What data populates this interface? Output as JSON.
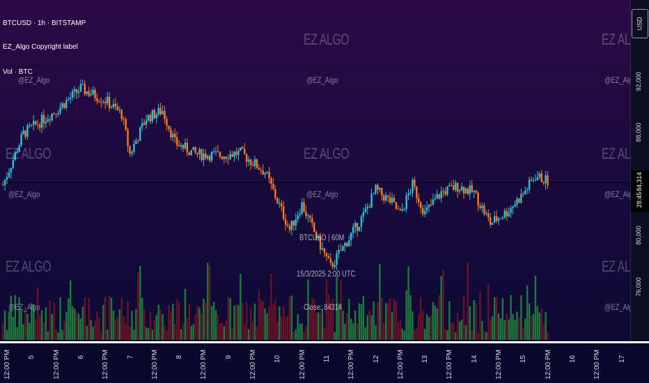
{
  "header": {
    "symbol_line": "BTCUSD · 1h · BITSTAMP",
    "indicator_line": "EZ_Algo Copyright label",
    "volume_line": "Vol · BTC"
  },
  "watermarks": {
    "big": "EZ ALGO",
    "small": "@EZ_Algo"
  },
  "tooltip": {
    "title": "BTCUSD | 60M",
    "datetime": "15/3/2025 2:00 UTC",
    "close": "Close: 84314"
  },
  "price_axis": {
    "currency_button": "USD",
    "ticks": [
      "92,000",
      "88,000",
      "80,000",
      "76,000"
    ],
    "last_price": "84,314",
    "countdown": "28:45"
  },
  "time_axis": {
    "labels": [
      "12:00 PM",
      "5",
      "12:00 PM",
      "6",
      "12:00 PM",
      "7",
      "12:00 PM",
      "8",
      "12:00 PM",
      "9",
      "12:00 PM",
      "10",
      "12:00 PM",
      "11",
      "12:00 PM",
      "12",
      "12:00 PM",
      "13",
      "12:00 PM",
      "14",
      "12:00 PM",
      "15",
      "12:00 PM",
      "16",
      "12:00 PM",
      "17"
    ]
  },
  "colors": {
    "up": "#26c6da",
    "down": "#ff7a1a",
    "vol_up": "#1e7a3a",
    "vol_down": "#6a1226",
    "last_price_line": "#000000"
  },
  "chart_data": {
    "type": "candlestick",
    "symbol": "BTCUSD",
    "interval": "1h",
    "exchange": "BITSTAMP",
    "y_ticks": [
      92000,
      88000,
      80000,
      76000
    ],
    "last_close": 84314,
    "x_day_ticks": [
      "5",
      "6",
      "7",
      "8",
      "9",
      "10",
      "11",
      "12",
      "13",
      "14",
      "15",
      "16",
      "17"
    ],
    "closing_path": [
      {
        "t": "4 Mar 10:00",
        "price": 84000
      },
      {
        "t": "4 Mar 20:00",
        "price": 88000
      },
      {
        "t": "5 Mar 12:00",
        "price": 89800
      },
      {
        "t": "6 Mar 00:00",
        "price": 91500
      },
      {
        "t": "6 Mar 12:00",
        "price": 90600
      },
      {
        "t": "6 Mar 20:00",
        "price": 89500
      },
      {
        "t": "7 Mar 00:00",
        "price": 86400
      },
      {
        "t": "7 Mar 08:00",
        "price": 89200
      },
      {
        "t": "7 Mar 16:00",
        "price": 89800
      },
      {
        "t": "7 Mar 22:00",
        "price": 87300
      },
      {
        "t": "8 Mar 08:00",
        "price": 86400
      },
      {
        "t": "8 Mar 20:00",
        "price": 86300
      },
      {
        "t": "9 Mar 06:00",
        "price": 86500
      },
      {
        "t": "9 Mar 18:00",
        "price": 85000
      },
      {
        "t": "10 Mar 06:00",
        "price": 80500
      },
      {
        "t": "10 Mar 12:00",
        "price": 82500
      },
      {
        "t": "10 Mar 20:00",
        "price": 79600
      },
      {
        "t": "11 Mar 02:00",
        "price": 77600
      },
      {
        "t": "11 Mar 10:00",
        "price": 79600
      },
      {
        "t": "11 Mar 18:00",
        "price": 81600
      },
      {
        "t": "12 Mar 00:00",
        "price": 83600
      },
      {
        "t": "12 Mar 08:00",
        "price": 82600
      },
      {
        "t": "12 Mar 12:00",
        "price": 81700
      },
      {
        "t": "12 Mar 18:00",
        "price": 84000
      },
      {
        "t": "13 Mar 00:00",
        "price": 81800
      },
      {
        "t": "13 Mar 08:00",
        "price": 83400
      },
      {
        "t": "13 Mar 16:00",
        "price": 83900
      },
      {
        "t": "14 Mar 00:00",
        "price": 83400
      },
      {
        "t": "14 Mar 08:00",
        "price": 81000
      },
      {
        "t": "14 Mar 16:00",
        "price": 81900
      },
      {
        "t": "15 Mar 00:00",
        "price": 83300
      },
      {
        "t": "15 Mar 06:00",
        "price": 84700
      },
      {
        "t": "15 Mar 12:00",
        "price": 84300
      }
    ]
  }
}
